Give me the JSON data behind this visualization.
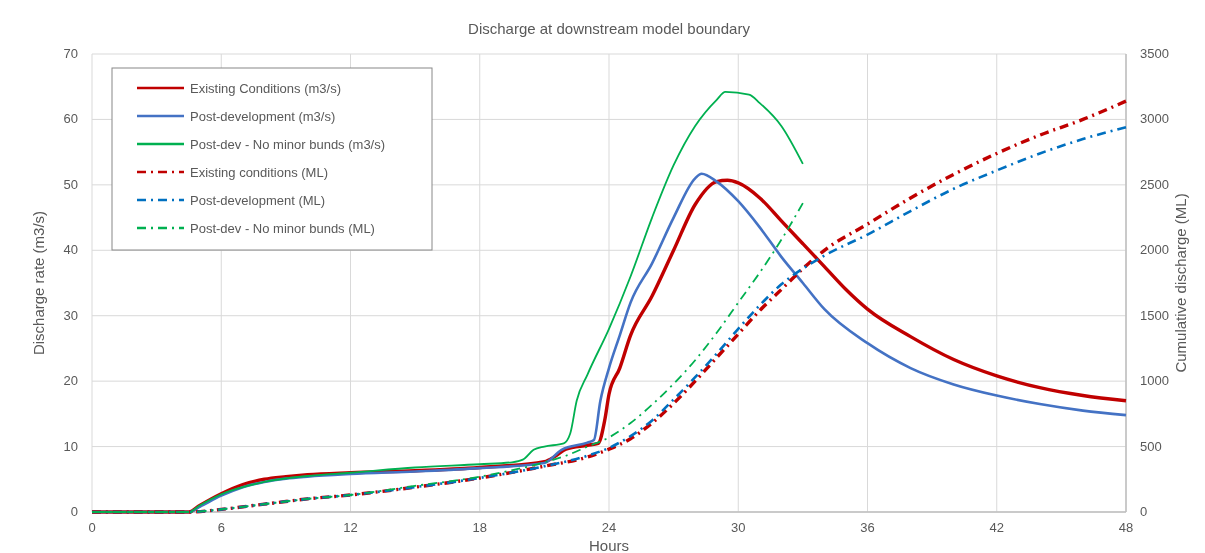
{
  "chart_data": {
    "type": "line",
    "title": "Discharge at downstream model boundary",
    "xlabel": "Hours",
    "ylabel": "Discharge rate (m3/s)",
    "y2label": "Cumulative discharge (ML)",
    "xlim": [
      0,
      48
    ],
    "xticks": [
      0,
      6,
      12,
      18,
      24,
      30,
      36,
      42,
      48
    ],
    "ylim": [
      0,
      70
    ],
    "yticks": [
      0,
      10,
      20,
      30,
      40,
      50,
      60,
      70
    ],
    "y2lim": [
      0,
      3500
    ],
    "y2ticks": [
      0,
      500,
      1000,
      1500,
      2000,
      2500,
      3000,
      3500
    ],
    "grid": true,
    "legend": "top left",
    "line_style": "solid",
    "series": [
      {
        "name": "Existing Conditions (m3/s)",
        "color": "#c00000",
        "x": [
          0,
          4.5,
          5,
          6,
          7,
          8,
          9,
          10,
          12,
          15,
          18,
          21,
          21.5,
          22,
          23,
          23.5,
          23.8,
          24,
          24.5,
          25,
          26,
          27,
          28,
          29,
          29.5,
          30,
          31,
          32,
          33,
          34,
          35,
          36,
          38,
          40,
          42,
          44,
          46,
          48
        ],
        "values": [
          0,
          0,
          1,
          2.8,
          4.2,
          5,
          5.4,
          5.7,
          6,
          6.3,
          6.8,
          7.7,
          8.5,
          9.6,
          10.2,
          10.5,
          14,
          18,
          22,
          27,
          33,
          40,
          47,
          50.5,
          50.7,
          50.3,
          48,
          44.5,
          41,
          37.5,
          34,
          31,
          26.8,
          23.3,
          20.8,
          19,
          17.8,
          17
        ]
      },
      {
        "name": "Post-development (m3/s)",
        "color": "#4472c4",
        "x": [
          0,
          4.5,
          5,
          6,
          7,
          8,
          9,
          10,
          12,
          15,
          18,
          21,
          21.8,
          23,
          23.3,
          23.6,
          24,
          24.5,
          25,
          26,
          27,
          28,
          28.3,
          29,
          30,
          31,
          32,
          33,
          34,
          36,
          38,
          40,
          42,
          44,
          46,
          48
        ],
        "values": [
          0,
          0,
          0.8,
          2.5,
          3.8,
          4.6,
          5.1,
          5.4,
          5.8,
          6.2,
          6.7,
          7.5,
          9.5,
          10.6,
          11,
          17,
          22,
          27,
          32,
          38,
          45,
          51,
          51.7,
          50.5,
          47.5,
          43.5,
          39,
          35,
          31,
          25.8,
          22,
          19.5,
          17.8,
          16.5,
          15.5,
          14.8
        ]
      },
      {
        "name": "Post-dev - No minor bunds (m3/s)",
        "color": "#00b050",
        "x": [
          0,
          4.5,
          5,
          6,
          8,
          10,
          12,
          15,
          18,
          19.5,
          20,
          20.5,
          21,
          21.9,
          22.2,
          22.5,
          23,
          24,
          25,
          26,
          27,
          28,
          29,
          29.4,
          30.5,
          31,
          32,
          33
        ],
        "values": [
          0,
          0,
          1,
          2.7,
          4.6,
          5.5,
          6,
          6.8,
          7.3,
          7.6,
          8,
          9.5,
          10,
          10.5,
          12,
          17,
          21,
          28,
          36,
          45,
          53,
          59,
          63,
          64.2,
          63.8,
          62.5,
          59,
          53.2
        ]
      },
      {
        "name": "Existing conditions (ML)",
        "color": "#c00000",
        "axis": "y2",
        "line_style": "dashed",
        "x": [
          0,
          4.5,
          6,
          8,
          10,
          12,
          15,
          18,
          21,
          23,
          24,
          25,
          26,
          27,
          28,
          29,
          30,
          31,
          32,
          33,
          34,
          36,
          38,
          40,
          42,
          44,
          46,
          48
        ],
        "values": [
          0,
          0,
          20,
          60,
          100,
          130,
          190,
          260,
          350,
          420,
          480,
          560,
          680,
          830,
          1000,
          1180,
          1360,
          1540,
          1700,
          1860,
          2000,
          2200,
          2400,
          2580,
          2740,
          2880,
          3000,
          3140
        ]
      },
      {
        "name": "Post-development (ML)",
        "color": "#0070c0",
        "axis": "y2",
        "line_style": "dashed",
        "x": [
          0,
          4.5,
          6,
          8,
          10,
          12,
          15,
          18,
          21,
          23,
          24,
          25,
          26,
          27,
          28,
          29,
          30,
          31,
          32,
          33,
          34,
          36,
          38,
          40,
          42,
          44,
          46,
          48
        ],
        "values": [
          0,
          0,
          20,
          60,
          100,
          130,
          190,
          260,
          350,
          430,
          490,
          580,
          700,
          860,
          1030,
          1210,
          1400,
          1580,
          1740,
          1860,
          1960,
          2120,
          2300,
          2470,
          2610,
          2740,
          2850,
          2940
        ]
      },
      {
        "name": "Post-dev - No minor bunds (ML)",
        "color": "#00b050",
        "axis": "y2",
        "line_style": "dashed",
        "x": [
          0,
          4.5,
          6,
          8,
          10,
          12,
          15,
          18,
          21,
          22,
          23,
          24,
          25,
          26,
          27,
          28,
          29,
          30,
          31,
          32,
          33
        ],
        "values": [
          0,
          0,
          20,
          60,
          100,
          130,
          200,
          270,
          380,
          430,
          500,
          570,
          680,
          820,
          980,
          1160,
          1370,
          1600,
          1830,
          2080,
          2360
        ]
      }
    ]
  }
}
